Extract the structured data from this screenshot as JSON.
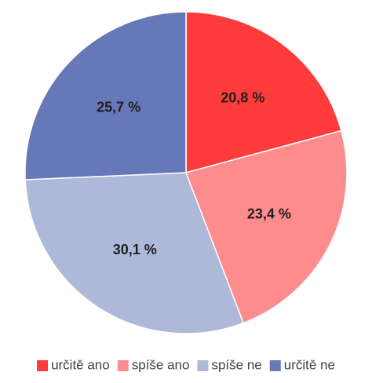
{
  "chart_data": {
    "type": "pie",
    "categories": [
      "určitě ano",
      "spíše ano",
      "spíše ne",
      "určitě ne"
    ],
    "values": [
      20.8,
      23.4,
      30.1,
      25.7
    ],
    "labels": [
      "20,8 %",
      "23,4 %",
      "30,1 %",
      "25,7 %"
    ],
    "colors": [
      "#ff3b3b",
      "#ff8c8c",
      "#aeb8d9",
      "#6678b8"
    ],
    "start_angle_deg": 0,
    "direction": "clockwise",
    "legend_position": "bottom",
    "title": ""
  }
}
